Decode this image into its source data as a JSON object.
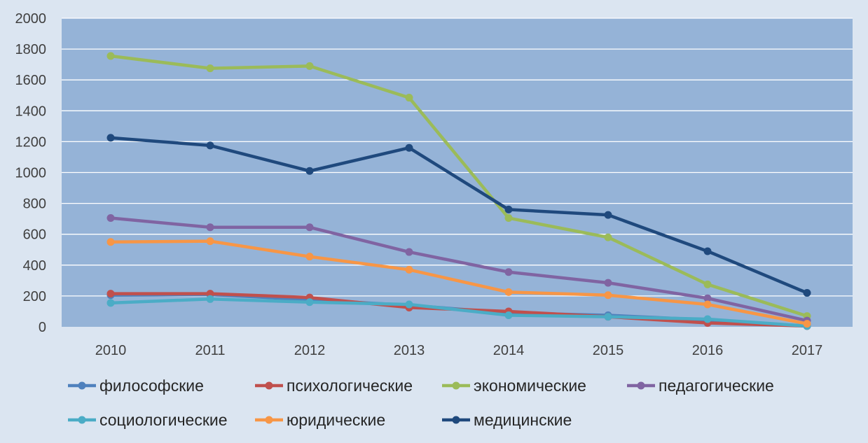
{
  "chart_data": {
    "type": "line",
    "title": "",
    "xlabel": "",
    "ylabel": "",
    "categories": [
      "2010",
      "2011",
      "2012",
      "2013",
      "2014",
      "2015",
      "2016",
      "2017"
    ],
    "ylim": [
      0,
      2000
    ],
    "yticks": [
      0,
      200,
      400,
      600,
      800,
      1000,
      1200,
      1400,
      1600,
      1800,
      2000
    ],
    "grid": true,
    "legend_position": "bottom",
    "plot_background": "#95b3d7",
    "page_background": "#dbe5f1",
    "series": [
      {
        "name": "философские",
        "color": "#4f81bd",
        "values": [
          205,
          210,
          175,
          140,
          90,
          75,
          45,
          5
        ]
      },
      {
        "name": "психологические",
        "color": "#c0504d",
        "values": [
          215,
          215,
          190,
          125,
          100,
          65,
          25,
          5
        ]
      },
      {
        "name": "экономические",
        "color": "#9bbb59",
        "values": [
          1755,
          1675,
          1690,
          1485,
          705,
          580,
          275,
          70
        ]
      },
      {
        "name": "педагогические",
        "color": "#8064a2",
        "values": [
          705,
          645,
          645,
          485,
          355,
          285,
          185,
          40
        ]
      },
      {
        "name": "социологические",
        "color": "#4bacc6",
        "values": [
          155,
          180,
          160,
          145,
          75,
          65,
          50,
          5
        ]
      },
      {
        "name": "юридические",
        "color": "#f79646",
        "values": [
          550,
          555,
          455,
          370,
          225,
          205,
          145,
          20
        ]
      },
      {
        "name": "медицинские",
        "color": "#1f497d",
        "values": [
          1225,
          1175,
          1010,
          1160,
          760,
          725,
          490,
          220
        ]
      }
    ]
  }
}
